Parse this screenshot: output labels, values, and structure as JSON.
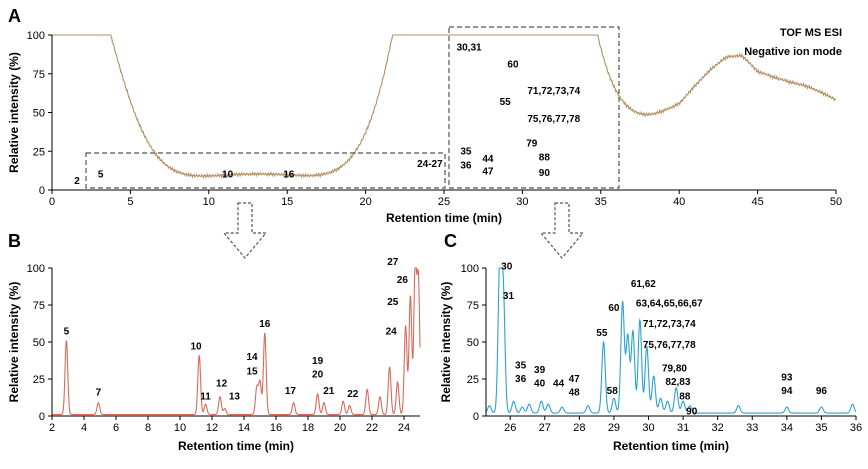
{
  "chart_data": [
    {
      "panel": "A",
      "type": "line",
      "xlabel": "Retention time (min)",
      "ylabel": "Relative intensity (%)",
      "xlim": [
        0,
        50
      ],
      "ylim": [
        0,
        100
      ],
      "x_ticks": [
        "0",
        "5",
        "10",
        "15",
        "20",
        "25",
        "30",
        "35",
        "40",
        "45",
        "50"
      ],
      "y_ticks": [
        "0",
        "25",
        "50",
        "75",
        "100"
      ],
      "annotation_lines": [
        "TOF MS ESI",
        "Negative ion mode"
      ],
      "color": "#b39060",
      "peaks": [
        [
          0.7,
          25
        ],
        [
          0.9,
          28
        ],
        [
          1.05,
          80
        ],
        [
          1.2,
          18
        ],
        [
          1.5,
          6
        ],
        [
          2.2,
          2
        ],
        [
          3.0,
          5
        ],
        [
          6.5,
          2
        ],
        [
          11.2,
          5
        ],
        [
          15.1,
          5
        ],
        [
          21.5,
          3
        ],
        [
          22.5,
          4
        ],
        [
          23.5,
          5
        ],
        [
          24.0,
          8
        ],
        [
          24.5,
          12
        ],
        [
          24.9,
          15
        ],
        [
          25.1,
          12
        ],
        [
          25.6,
          100
        ],
        [
          25.8,
          60
        ],
        [
          26.2,
          12
        ],
        [
          26.8,
          10
        ],
        [
          27.0,
          6
        ],
        [
          27.6,
          10
        ],
        [
          28.0,
          6
        ],
        [
          28.9,
          52
        ],
        [
          29.2,
          40
        ],
        [
          29.4,
          78
        ],
        [
          29.6,
          50
        ],
        [
          29.8,
          56
        ],
        [
          30.0,
          70
        ],
        [
          30.2,
          40
        ],
        [
          30.4,
          20
        ],
        [
          30.8,
          10
        ],
        [
          31.5,
          6
        ],
        [
          33.0,
          5
        ],
        [
          35.5,
          8
        ],
        [
          43.5,
          22
        ],
        [
          45.8,
          32
        ],
        [
          49.0,
          16
        ]
      ],
      "baseline": [
        [
          0,
          2
        ],
        [
          20,
          3
        ],
        [
          25,
          5
        ],
        [
          30,
          8
        ],
        [
          35,
          5
        ],
        [
          38,
          5
        ],
        [
          40,
          7
        ],
        [
          41,
          14
        ],
        [
          42,
          20
        ],
        [
          43,
          24
        ],
        [
          44,
          22
        ],
        [
          45,
          10
        ],
        [
          46,
          6
        ],
        [
          47,
          4
        ],
        [
          48,
          4
        ],
        [
          50,
          3
        ]
      ],
      "peak_labels": [
        {
          "text": "2",
          "x": 1.6,
          "y": 4
        },
        {
          "text": "5",
          "x": 3.1,
          "y": 8
        },
        {
          "text": "10",
          "x": 11.2,
          "y": 8
        },
        {
          "text": "16",
          "x": 15.1,
          "y": 8
        },
        {
          "text": "24-27",
          "x": 24.1,
          "y": 15
        },
        {
          "text": "30,31",
          "x": 26.6,
          "y": 90
        },
        {
          "text": "60",
          "x": 29.4,
          "y": 79
        },
        {
          "text": "71,72,73,74",
          "x": 32.0,
          "y": 62
        },
        {
          "text": "55",
          "x": 28.9,
          "y": 55
        },
        {
          "text": "75,76,77,78",
          "x": 32.0,
          "y": 44
        },
        {
          "text": "79",
          "x": 30.6,
          "y": 28
        },
        {
          "text": "35",
          "x": 26.4,
          "y": 23
        },
        {
          "text": "36",
          "x": 26.4,
          "y": 14
        },
        {
          "text": "44",
          "x": 27.8,
          "y": 18
        },
        {
          "text": "47",
          "x": 27.8,
          "y": 10
        },
        {
          "text": "88",
          "x": 31.4,
          "y": 19
        },
        {
          "text": "90",
          "x": 31.4,
          "y": 9
        }
      ]
    },
    {
      "panel": "B",
      "type": "line",
      "xlabel": "Retention time (min)",
      "ylabel": "Relative intensity (%)",
      "xlim": [
        2,
        25
      ],
      "ylim": [
        0,
        100
      ],
      "x_ticks": [
        "2",
        "4",
        "6",
        "8",
        "10",
        "12",
        "14",
        "16",
        "18",
        "20",
        "22",
        "24"
      ],
      "y_ticks": [
        "0",
        "25",
        "50",
        "75",
        "100"
      ],
      "color": "#d96a5a",
      "peaks": [
        [
          2.9,
          50
        ],
        [
          4.9,
          8
        ],
        [
          11.2,
          40
        ],
        [
          11.6,
          7
        ],
        [
          12.5,
          12
        ],
        [
          12.8,
          4
        ],
        [
          14.8,
          18
        ],
        [
          15.0,
          22
        ],
        [
          15.3,
          55
        ],
        [
          17.1,
          8
        ],
        [
          18.6,
          14
        ],
        [
          19.0,
          8
        ],
        [
          20.2,
          9
        ],
        [
          20.6,
          6
        ],
        [
          21.7,
          17
        ],
        [
          22.5,
          12
        ],
        [
          23.1,
          32
        ],
        [
          23.6,
          22
        ],
        [
          24.1,
          60
        ],
        [
          24.4,
          80
        ],
        [
          24.7,
          100
        ],
        [
          24.9,
          90
        ]
      ],
      "peak_labels": [
        {
          "text": "5",
          "x": 2.9,
          "y": 55
        },
        {
          "text": "7",
          "x": 4.9,
          "y": 14
        },
        {
          "text": "10",
          "x": 11.0,
          "y": 45
        },
        {
          "text": "12",
          "x": 12.6,
          "y": 20
        },
        {
          "text": "11",
          "x": 11.6,
          "y": 11
        },
        {
          "text": "14",
          "x": 14.5,
          "y": 38
        },
        {
          "text": "15",
          "x": 14.5,
          "y": 28
        },
        {
          "text": "13",
          "x": 13.4,
          "y": 11
        },
        {
          "text": "16",
          "x": 15.3,
          "y": 60
        },
        {
          "text": "17",
          "x": 16.9,
          "y": 15
        },
        {
          "text": "19",
          "x": 18.6,
          "y": 35
        },
        {
          "text": "20",
          "x": 18.6,
          "y": 26
        },
        {
          "text": "21",
          "x": 19.3,
          "y": 15
        },
        {
          "text": "22",
          "x": 20.8,
          "y": 13
        },
        {
          "text": "24",
          "x": 23.2,
          "y": 55
        },
        {
          "text": "25",
          "x": 23.3,
          "y": 75
        },
        {
          "text": "26",
          "x": 23.9,
          "y": 90
        },
        {
          "text": "27",
          "x": 23.3,
          "y": 102
        }
      ]
    },
    {
      "panel": "C",
      "type": "line",
      "xlabel": "Retention time (min)",
      "ylabel": "Relative intensity (%)",
      "xlim": [
        25.3,
        36
      ],
      "ylim": [
        0,
        100
      ],
      "x_ticks": [
        "26",
        "27",
        "28",
        "29",
        "30",
        "31",
        "32",
        "33",
        "34",
        "35",
        "36"
      ],
      "y_ticks": [
        "0",
        "25",
        "50",
        "75",
        "100"
      ],
      "color": "#2aa2d3",
      "peaks": [
        [
          25.4,
          5
        ],
        [
          25.7,
          100
        ],
        [
          25.8,
          78
        ],
        [
          26.1,
          8
        ],
        [
          26.35,
          4
        ],
        [
          26.55,
          6
        ],
        [
          26.9,
          8
        ],
        [
          27.1,
          6
        ],
        [
          27.5,
          4
        ],
        [
          28.25,
          5
        ],
        [
          28.7,
          48
        ],
        [
          29.0,
          10
        ],
        [
          29.25,
          75
        ],
        [
          29.4,
          52
        ],
        [
          29.55,
          55
        ],
        [
          29.75,
          63
        ],
        [
          29.95,
          45
        ],
        [
          30.15,
          25
        ],
        [
          30.35,
          10
        ],
        [
          30.55,
          8
        ],
        [
          30.8,
          17
        ],
        [
          31.0,
          8
        ],
        [
          31.2,
          5
        ],
        [
          32.6,
          5
        ],
        [
          34.0,
          4
        ],
        [
          35.0,
          4
        ],
        [
          35.9,
          6
        ]
      ],
      "peak_labels": [
        {
          "text": "30",
          "x": 25.9,
          "y": 99
        },
        {
          "text": "31",
          "x": 25.95,
          "y": 79
        },
        {
          "text": "35",
          "x": 26.3,
          "y": 32
        },
        {
          "text": "36",
          "x": 26.3,
          "y": 23
        },
        {
          "text": "39",
          "x": 26.85,
          "y": 29
        },
        {
          "text": "40",
          "x": 26.85,
          "y": 20
        },
        {
          "text": "44",
          "x": 27.4,
          "y": 20
        },
        {
          "text": "47",
          "x": 27.85,
          "y": 23
        },
        {
          "text": "48",
          "x": 27.85,
          "y": 14
        },
        {
          "text": "55",
          "x": 28.65,
          "y": 54
        },
        {
          "text": "58",
          "x": 28.95,
          "y": 15
        },
        {
          "text": "60",
          "x": 29.0,
          "y": 71
        },
        {
          "text": "61,62",
          "x": 29.85,
          "y": 87
        },
        {
          "text": "63,64,65,66,67",
          "x": 30.6,
          "y": 74
        },
        {
          "text": "71,72,73,74",
          "x": 30.6,
          "y": 60
        },
        {
          "text": "75,76,77,78",
          "x": 30.6,
          "y": 46
        },
        {
          "text": "79,80",
          "x": 30.75,
          "y": 30
        },
        {
          "text": "82,83",
          "x": 30.85,
          "y": 21
        },
        {
          "text": "88",
          "x": 31.05,
          "y": 11
        },
        {
          "text": "90",
          "x": 31.25,
          "y": 1
        },
        {
          "text": "93",
          "x": 34.0,
          "y": 24
        },
        {
          "text": "94",
          "x": 34.0,
          "y": 15
        },
        {
          "text": "96",
          "x": 35.0,
          "y": 15
        }
      ]
    }
  ]
}
